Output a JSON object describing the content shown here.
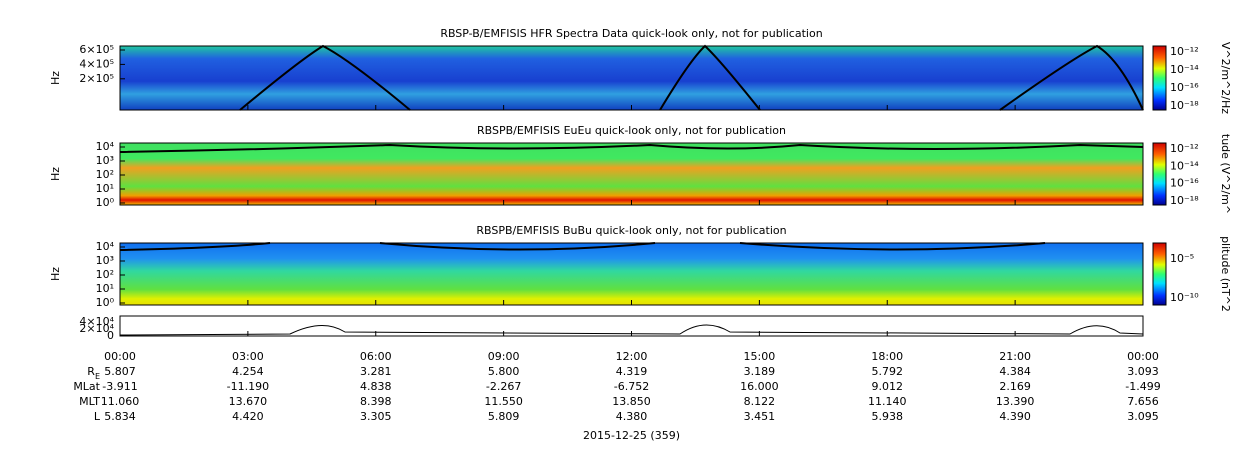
{
  "panels": [
    {
      "title": "RBSP-B/EMFISIS  HFR Spectra Data quick-look only, not for publication",
      "ylabel": "Hz",
      "yticks": [
        "6×10⁵",
        "4×10⁵",
        "2×10⁵"
      ],
      "colorbar_label": "V^2/m^2/Hz",
      "colorbar_ticks": [
        "10⁻¹²",
        "10⁻¹⁴",
        "10⁻¹⁶",
        "10⁻¹⁸"
      ]
    },
    {
      "title": "RBSPB/EMFISIS  EuEu quick-look only, not for publication",
      "ylabel": "Hz",
      "yticks": [
        "10⁴",
        "10³",
        "10²",
        "10¹",
        "10⁰"
      ],
      "colorbar_label": "tude (V^2/m^",
      "colorbar_ticks": [
        "10⁻¹²",
        "10⁻¹⁴",
        "10⁻¹⁶",
        "10⁻¹⁸"
      ]
    },
    {
      "title": "RBSPB/EMFISIS  BuBu quick-look only, not for publication",
      "ylabel": "Hz",
      "yticks": [
        "10⁴",
        "10³",
        "10²",
        "10¹",
        "10⁰"
      ],
      "colorbar_label": "plitude (nT^2",
      "colorbar_ticks": [
        "10⁻⁵",
        "10⁻¹⁰"
      ]
    }
  ],
  "line_panel": {
    "yticks": [
      "4×10⁴",
      "2×10⁴",
      "0"
    ]
  },
  "x_ticks": [
    "00:00",
    "03:00",
    "06:00",
    "09:00",
    "12:00",
    "15:00",
    "18:00",
    "21:00",
    "00:00"
  ],
  "ephemeris": [
    {
      "label": "R",
      "sub": "E",
      "values": [
        "5.807",
        "4.254",
        "3.281",
        "5.800",
        "4.319",
        "3.189",
        "5.792",
        "4.384",
        "3.093"
      ]
    },
    {
      "label": "MLat",
      "values": [
        "-3.911",
        "-11.190",
        "4.838",
        "-2.267",
        "-6.752",
        "16.000",
        "9.012",
        "2.169",
        "-1.499"
      ]
    },
    {
      "label": "MLT",
      "values": [
        "11.060",
        "13.670",
        "8.398",
        "11.550",
        "13.850",
        "8.122",
        "11.140",
        "13.390",
        "7.656"
      ]
    },
    {
      "label": "L",
      "values": [
        "5.834",
        "4.420",
        "3.305",
        "5.809",
        "4.380",
        "3.451",
        "5.938",
        "4.390",
        "3.095"
      ]
    }
  ],
  "date": "2015-12-25 (359)"
}
